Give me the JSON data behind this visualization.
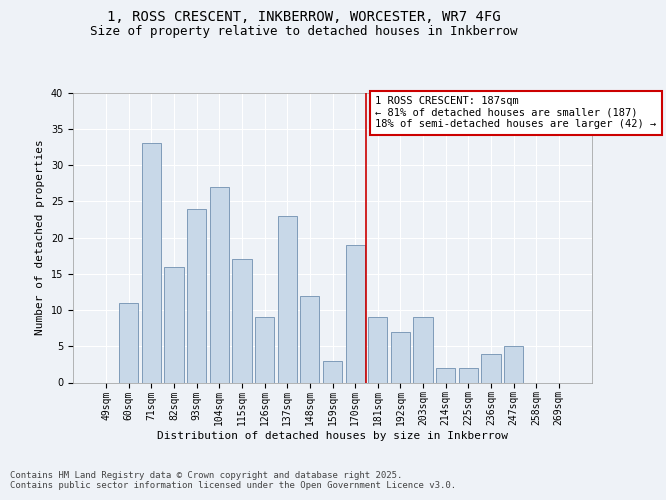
{
  "title_line1": "1, ROSS CRESCENT, INKBERROW, WORCESTER, WR7 4FG",
  "title_line2": "Size of property relative to detached houses in Inkberrow",
  "xlabel": "Distribution of detached houses by size in Inkberrow",
  "ylabel": "Number of detached properties",
  "categories": [
    "49sqm",
    "60sqm",
    "71sqm",
    "82sqm",
    "93sqm",
    "104sqm",
    "115sqm",
    "126sqm",
    "137sqm",
    "148sqm",
    "159sqm",
    "170sqm",
    "181sqm",
    "192sqm",
    "203sqm",
    "214sqm",
    "225sqm",
    "236sqm",
    "247sqm",
    "258sqm",
    "269sqm"
  ],
  "values": [
    0,
    11,
    33,
    16,
    24,
    27,
    17,
    9,
    23,
    12,
    3,
    19,
    9,
    7,
    9,
    2,
    2,
    4,
    5,
    0,
    0
  ],
  "bar_color": "#c8d8e8",
  "bar_edge_color": "#7090b0",
  "vline_x_index": 12,
  "vline_color": "#cc0000",
  "annotation_text": "1 ROSS CRESCENT: 187sqm\n← 81% of detached houses are smaller (187)\n18% of semi-detached houses are larger (42) →",
  "annotation_box_color": "#cc0000",
  "ylim": [
    0,
    40
  ],
  "yticks": [
    0,
    5,
    10,
    15,
    20,
    25,
    30,
    35,
    40
  ],
  "footer_text": "Contains HM Land Registry data © Crown copyright and database right 2025.\nContains public sector information licensed under the Open Government Licence v3.0.",
  "background_color": "#eef2f7",
  "grid_color": "#ffffff",
  "title_fontsize": 10,
  "subtitle_fontsize": 9,
  "axis_label_fontsize": 8,
  "tick_fontsize": 7,
  "annotation_fontsize": 7.5,
  "footer_fontsize": 6.5
}
